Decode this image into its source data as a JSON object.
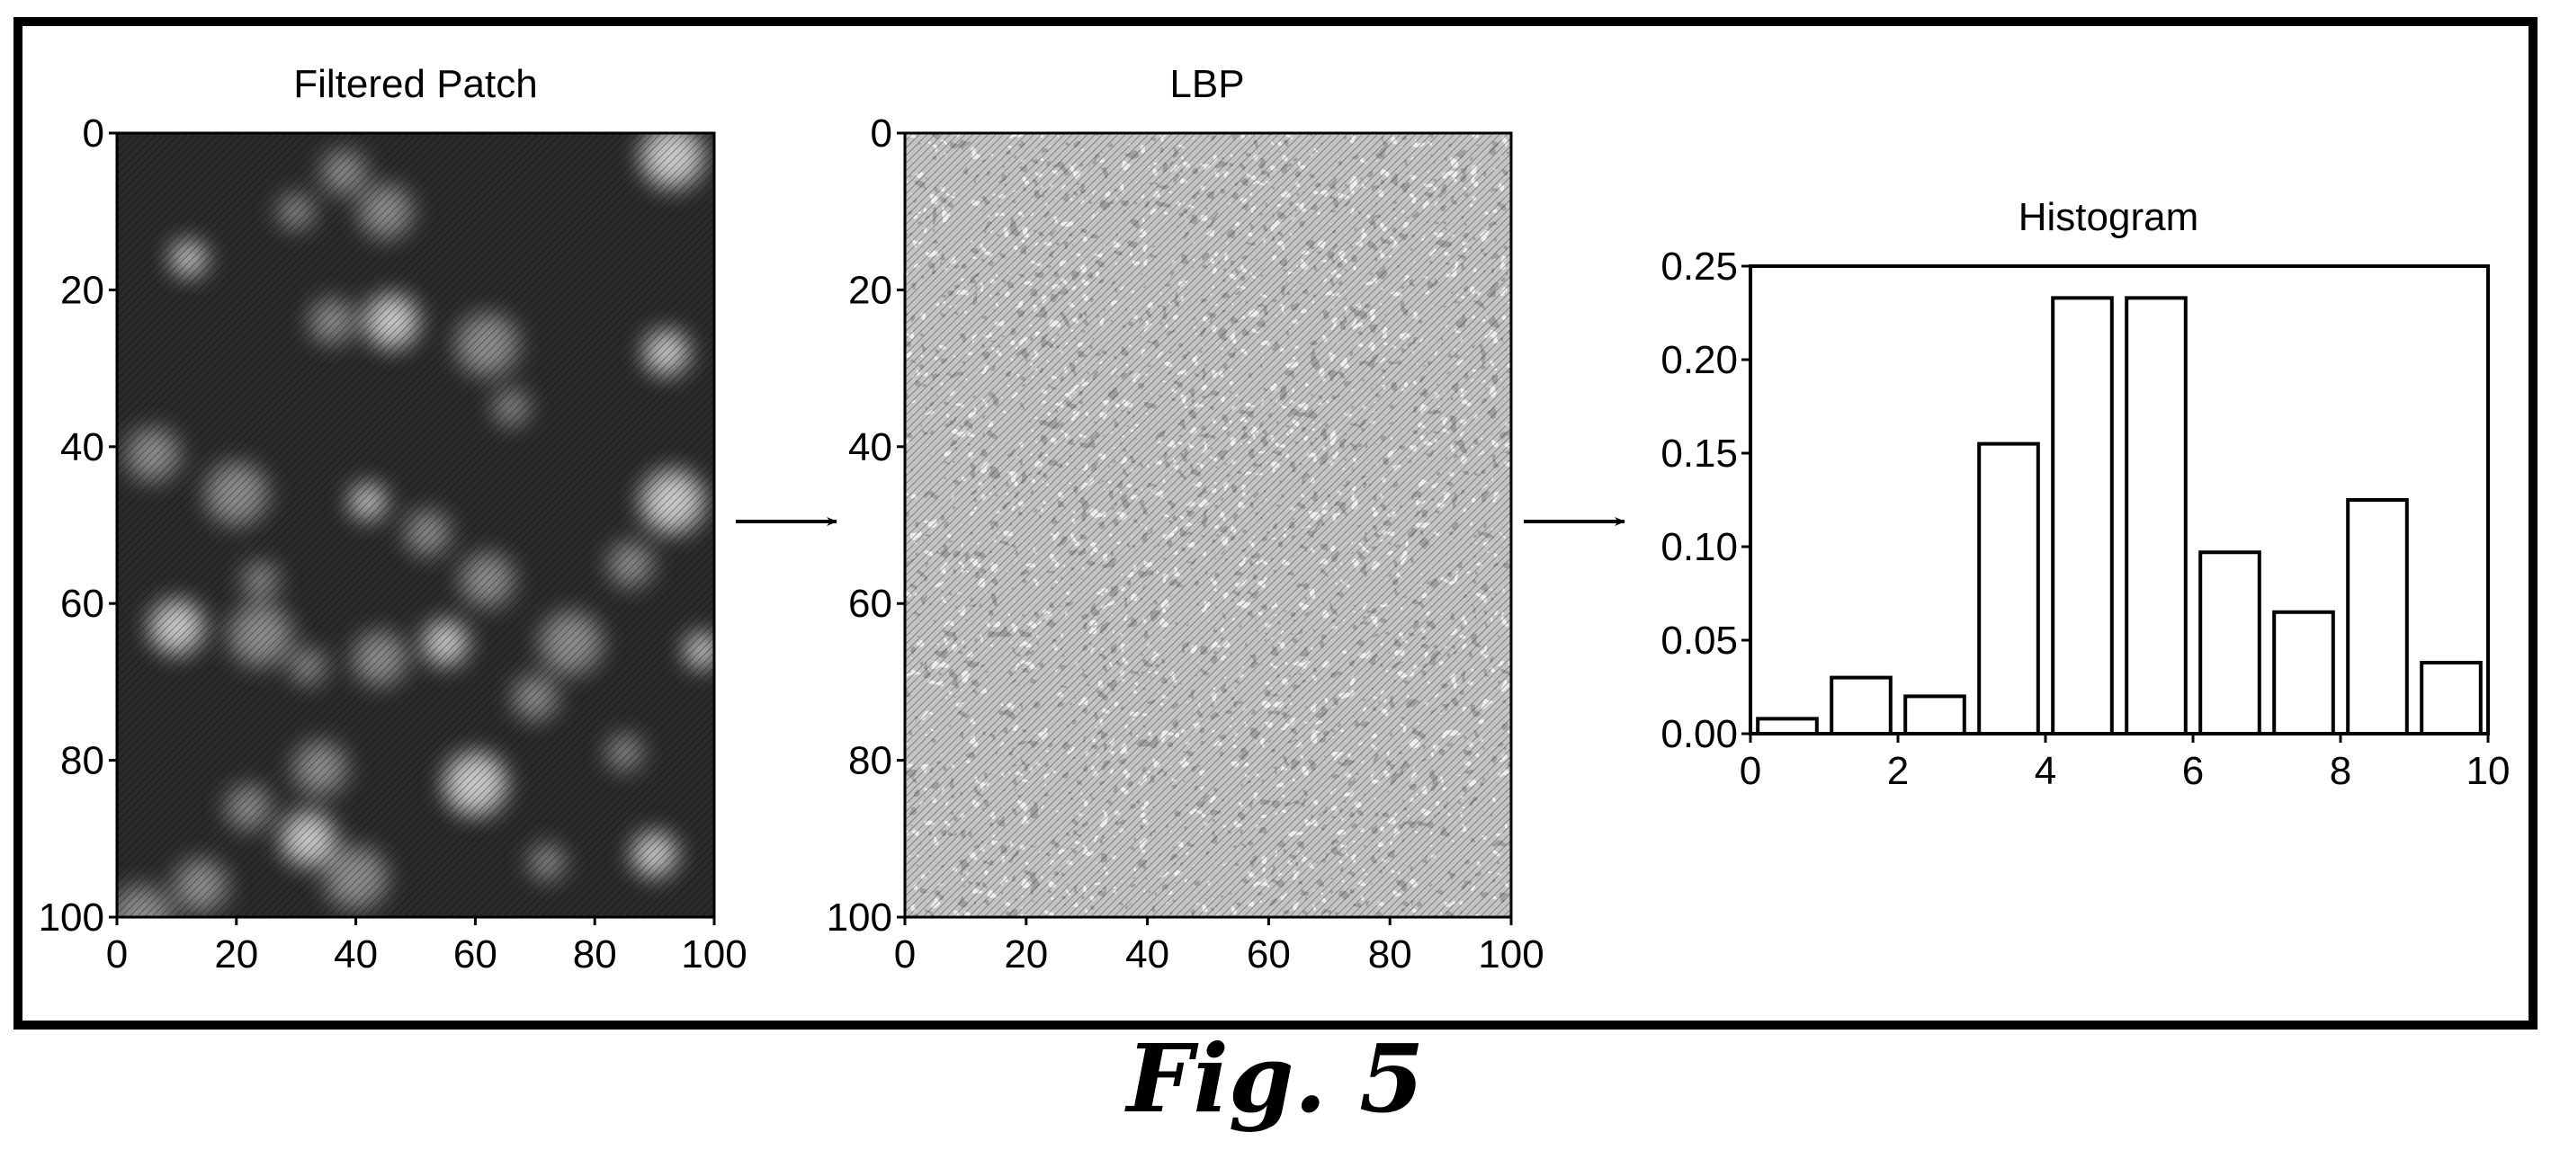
{
  "figure_caption": "Fig. 5",
  "chart_data": [
    {
      "type": "heatmap",
      "title": "Filtered Patch",
      "xlim": [
        0,
        100
      ],
      "ylim": [
        0,
        100
      ],
      "y_inverted": true,
      "x_ticks": [
        "0",
        "20",
        "40",
        "60",
        "80",
        "100"
      ],
      "y_ticks": [
        "0",
        "20",
        "40",
        "60",
        "80",
        "100"
      ],
      "colormap": "grayscale",
      "background": "#2a2a2a",
      "bright_spots": [
        [
          12,
          16
        ],
        [
          38,
          5
        ],
        [
          45,
          10
        ],
        [
          93,
          3
        ],
        [
          30,
          10
        ],
        [
          36,
          24
        ],
        [
          46,
          24
        ],
        [
          62,
          27
        ],
        [
          66,
          35
        ],
        [
          92,
          28
        ],
        [
          6,
          41
        ],
        [
          20,
          46
        ],
        [
          42,
          47
        ],
        [
          52,
          51
        ],
        [
          62,
          57
        ],
        [
          93,
          47
        ],
        [
          24,
          57
        ],
        [
          86,
          55
        ],
        [
          10,
          63
        ],
        [
          24,
          64
        ],
        [
          32,
          68
        ],
        [
          55,
          65
        ],
        [
          44,
          67
        ],
        [
          76,
          65
        ],
        [
          98,
          66
        ],
        [
          70,
          72
        ],
        [
          34,
          81
        ],
        [
          60,
          83
        ],
        [
          85,
          79
        ],
        [
          22,
          86
        ],
        [
          32,
          90
        ],
        [
          40,
          95
        ],
        [
          72,
          93
        ],
        [
          90,
          92
        ],
        [
          14,
          96
        ],
        [
          4,
          100
        ]
      ]
    },
    {
      "type": "heatmap",
      "title": "LBP",
      "xlim": [
        0,
        100
      ],
      "ylim": [
        0,
        100
      ],
      "y_inverted": true,
      "x_ticks": [
        "0",
        "20",
        "40",
        "60",
        "80",
        "100"
      ],
      "y_ticks": [
        "0",
        "20",
        "40",
        "60",
        "80",
        "100"
      ],
      "colormap": "grayscale",
      "texture": "speckled local binary pattern"
    },
    {
      "type": "bar",
      "title": "Histogram",
      "bar_centers": [
        0.5,
        1.5,
        2.5,
        3.5,
        4.5,
        5.5,
        6.5,
        7.5,
        8.5,
        9.5
      ],
      "values": [
        0.008,
        0.03,
        0.02,
        0.155,
        0.233,
        0.233,
        0.097,
        0.065,
        0.125,
        0.038
      ],
      "bar_width": 0.8,
      "xlim": [
        0,
        10
      ],
      "ylim": [
        0,
        0.25
      ],
      "x_ticks": [
        "0",
        "2",
        "4",
        "6",
        "8",
        "10"
      ],
      "y_ticks": [
        "0.00",
        "0.05",
        "0.10",
        "0.15",
        "0.20",
        "0.25"
      ],
      "bar_fill": "#ffffff",
      "bar_edge": "#000000"
    }
  ],
  "arrows": [
    "right-arrow",
    "right-arrow"
  ]
}
